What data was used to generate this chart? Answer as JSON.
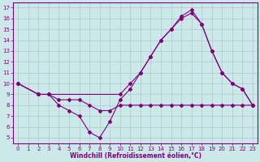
{
  "xlabel": "Windchill (Refroidissement éolien,°C)",
  "xlim": [
    -0.5,
    23.5
  ],
  "ylim": [
    4.5,
    17.5
  ],
  "yticks": [
    5,
    6,
    7,
    8,
    9,
    10,
    11,
    12,
    13,
    14,
    15,
    16,
    17
  ],
  "xticks": [
    0,
    1,
    2,
    3,
    4,
    5,
    6,
    7,
    8,
    9,
    10,
    11,
    12,
    13,
    14,
    15,
    16,
    17,
    18,
    19,
    20,
    21,
    22,
    23
  ],
  "line_color": "#800080",
  "bg_color": "#cce8e8",
  "grid_color": "#aacccc",
  "curve1_x": [
    0,
    2,
    3,
    4,
    5,
    6,
    7,
    8,
    9,
    10,
    11,
    12,
    13,
    14,
    15,
    16,
    17,
    18,
    19,
    20,
    21,
    22,
    23
  ],
  "curve1_y": [
    10,
    9,
    9,
    8.5,
    8.5,
    8.5,
    8,
    7.5,
    7.5,
    8,
    8,
    8,
    8,
    8,
    8,
    8,
    8,
    8,
    8,
    8,
    8,
    8,
    8
  ],
  "curve2_x": [
    0,
    2,
    3,
    4,
    5,
    6,
    7,
    8,
    9,
    10,
    11,
    12,
    13,
    14,
    15,
    16,
    17,
    18,
    19,
    20,
    21,
    22,
    23
  ],
  "curve2_y": [
    10,
    9,
    9,
    8,
    7.5,
    7,
    5.5,
    5,
    6.5,
    8.5,
    9.5,
    11,
    12.5,
    14,
    15,
    16,
    16.5,
    15.5,
    13,
    11,
    10,
    9.5,
    8
  ],
  "curve3_x": [
    0,
    2,
    3,
    10,
    11,
    12,
    13,
    14,
    15,
    16,
    17,
    18,
    19,
    20,
    21,
    22,
    23
  ],
  "curve3_y": [
    10,
    9,
    9,
    9,
    10,
    11,
    12.5,
    14,
    15,
    16.2,
    16.8,
    15.5,
    13,
    11,
    10,
    9.5,
    8
  ]
}
